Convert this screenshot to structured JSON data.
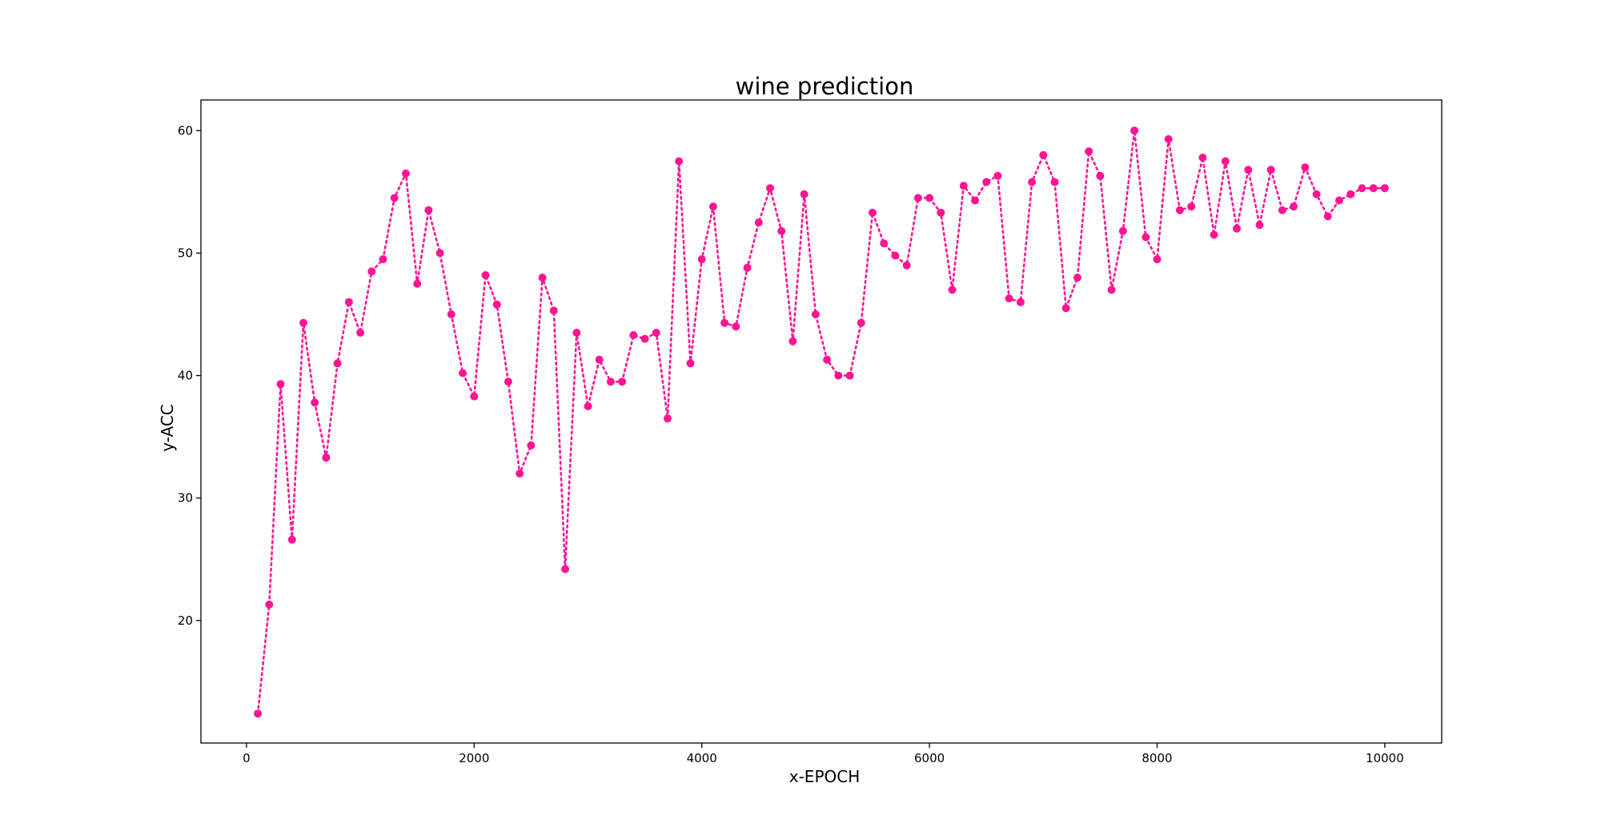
{
  "chart_data": {
    "type": "line",
    "title": "wine prediction",
    "xlabel": "x-EPOCH",
    "ylabel": "y-ACC",
    "xlim": [
      -400,
      10500
    ],
    "ylim": [
      10,
      62.5
    ],
    "x_ticks": [
      0,
      2000,
      4000,
      6000,
      8000,
      10000
    ],
    "y_ticks": [
      20,
      30,
      40,
      50,
      60
    ],
    "grid": false,
    "legend": "none",
    "line_style": "dotted",
    "marker": "circle",
    "color": "#ff1493",
    "series": [
      {
        "x": [
          100,
          200,
          300,
          400,
          500,
          600,
          700,
          800,
          900,
          1000,
          1100,
          1200,
          1300,
          1400,
          1500,
          1600,
          1700,
          1800,
          1900,
          2000,
          2100,
          2200,
          2300,
          2400,
          2500,
          2600,
          2700,
          2800,
          2900,
          3000,
          3100,
          3200,
          3300,
          3400,
          3500,
          3600,
          3700,
          3800,
          3900,
          4000,
          4100,
          4200,
          4300,
          4400,
          4500,
          4600,
          4700,
          4800,
          4900,
          5000,
          5100,
          5200,
          5300,
          5400,
          5500,
          5600,
          5700,
          5800,
          5900,
          6000,
          6100,
          6200,
          6300,
          6400,
          6500,
          6600,
          6700,
          6800,
          6900,
          7000,
          7100,
          7200,
          7300,
          7400,
          7500,
          7600,
          7700,
          7800,
          7900,
          8000,
          8100,
          8200,
          8300,
          8400,
          8500,
          8600,
          8700,
          8800,
          8900,
          9000,
          9100,
          9200,
          9300,
          9400,
          9500,
          9600,
          9700,
          9800,
          9900,
          10000
        ],
        "values": [
          12.4,
          21.3,
          39.3,
          26.6,
          44.3,
          37.8,
          33.3,
          41.0,
          46.0,
          43.5,
          48.5,
          49.5,
          54.5,
          56.5,
          47.5,
          53.5,
          50.0,
          45.0,
          40.2,
          38.3,
          48.2,
          45.8,
          39.5,
          32.0,
          34.3,
          48.0,
          45.3,
          24.2,
          43.5,
          37.5,
          41.3,
          39.5,
          39.5,
          43.3,
          43.0,
          43.5,
          36.5,
          57.5,
          41.0,
          49.5,
          53.8,
          44.3,
          44.0,
          48.8,
          52.5,
          55.3,
          51.8,
          42.8,
          54.8,
          45.0,
          41.3,
          40.0,
          40.0,
          44.3,
          53.3,
          50.8,
          49.8,
          49.0,
          54.5,
          54.5,
          53.3,
          47.0,
          55.5,
          54.3,
          55.8,
          56.3,
          46.3,
          46.0,
          55.8,
          58.0,
          55.8,
          45.5,
          48.0,
          58.3,
          56.3,
          47.0,
          51.8,
          60.0,
          51.3,
          49.5,
          59.3,
          53.5,
          53.8,
          57.8,
          51.5,
          57.5,
          52.0,
          56.8,
          52.3,
          56.8,
          53.5,
          53.8,
          57.0,
          54.8,
          53.0,
          54.3,
          54.8,
          55.3,
          55.3,
          55.3
        ]
      }
    ]
  }
}
